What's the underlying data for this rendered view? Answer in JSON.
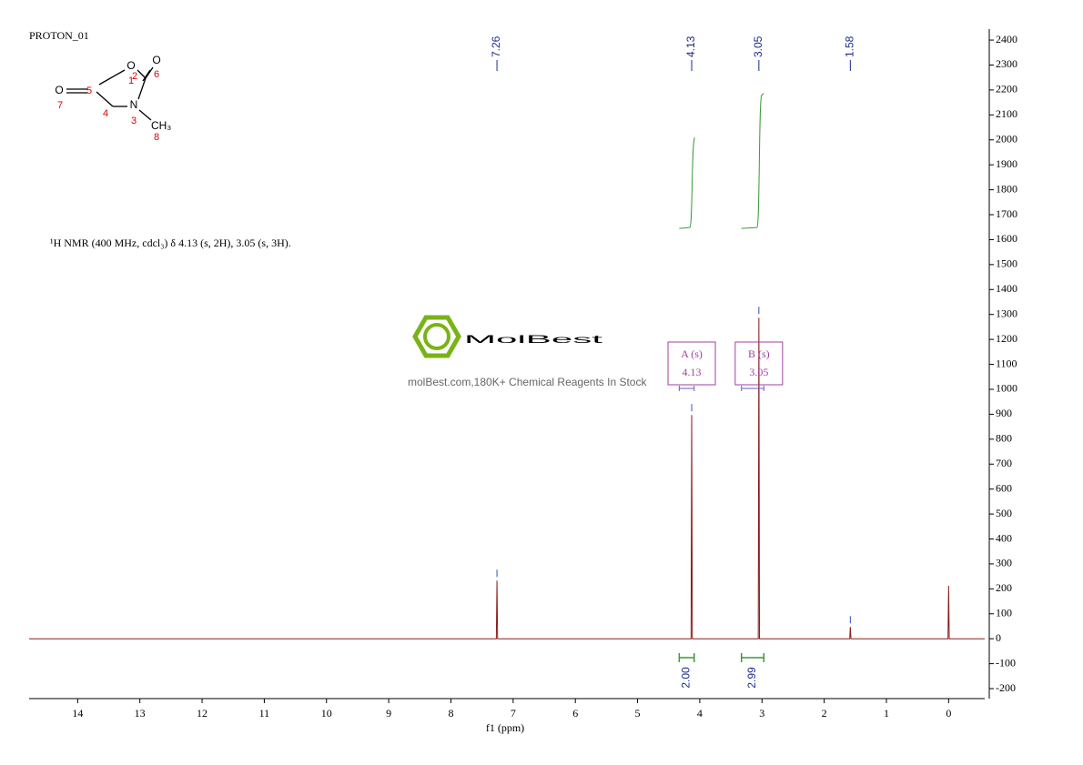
{
  "chart_data": {
    "type": "line",
    "title": "PROTON_01",
    "subtitle": "¹H NMR (400 MHz, cdcl₃) δ 4.13 (s, 2H), 3.05 (s, 3H).",
    "xlabel": "f1 (ppm)",
    "watermark": {
      "brand": "MolBest",
      "tagline": "molBest.com,180K+ Chemical Reagents In Stock"
    },
    "structure": {
      "atoms": [
        "O",
        "O",
        "O",
        "N",
        "CH₃"
      ],
      "atom_numbers": [
        1,
        2,
        3,
        4,
        5,
        6,
        7,
        8
      ]
    },
    "x": [
      14.78,
      7.27,
      7.26,
      7.25,
      4.14,
      4.13,
      4.12,
      3.06,
      3.05,
      3.04,
      1.59,
      1.58,
      1.57,
      0.01,
      0,
      -0.01,
      -0.58
    ],
    "values": [
      0,
      0,
      233,
      0,
      0,
      897,
      0,
      0,
      1287,
      0,
      0,
      47,
      0,
      0,
      212,
      0,
      0
    ],
    "color": "#8b1a1a",
    "peak_labels": [
      7.26,
      4.13,
      3.05,
      1.58
    ],
    "multiplets": [
      {
        "label": "A (s)",
        "shift": 4.13,
        "range": [
          4.33,
          4.09
        ],
        "integral": 2,
        "integral_label": "2.00"
      },
      {
        "label": "B (s)",
        "shift": 3.05,
        "range": [
          3.33,
          2.97
        ],
        "integral": 2.99,
        "integral_label": "2.99"
      }
    ],
    "xlim": [
      14.78,
      -0.58
    ],
    "xticks": [
      14,
      13,
      12,
      11,
      10,
      9,
      8,
      7,
      6,
      5,
      4,
      3,
      2,
      1,
      0
    ],
    "ylim": [
      -240,
      2444
    ],
    "yticks": [
      -200,
      -100,
      0,
      100,
      200,
      300,
      400,
      500,
      600,
      700,
      800,
      900,
      1000,
      1100,
      1200,
      1300,
      1400,
      1500,
      1600,
      1700,
      1800,
      1900,
      2000,
      2100,
      2200,
      2300,
      2400
    ]
  }
}
